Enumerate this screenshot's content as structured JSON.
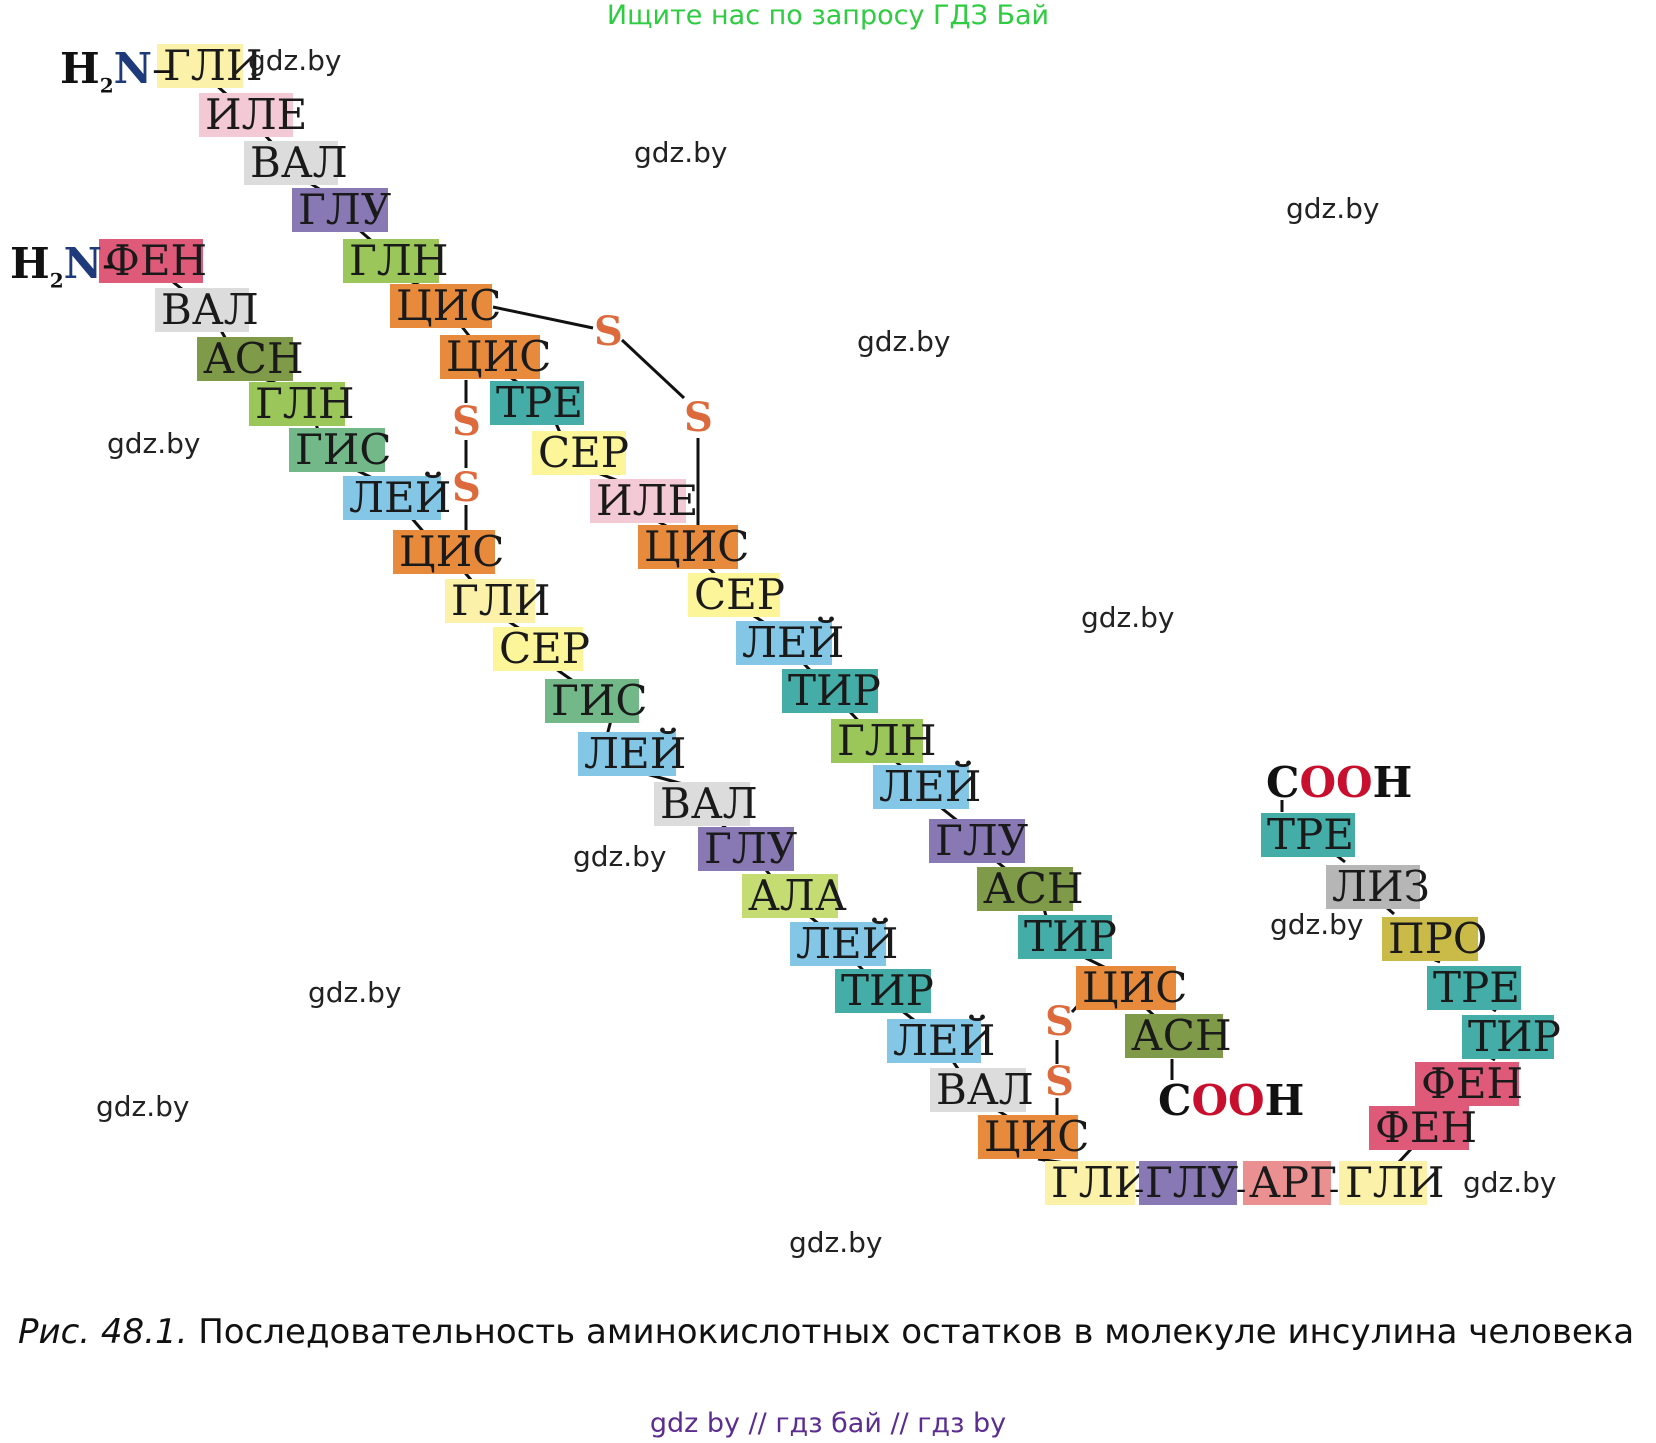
{
  "banner": "Ищите нас по запросу ГДЗ Бай",
  "colors": {
    "ГЛИ": "#fbf1a8",
    "ИЛЕ": "#f4c9d6",
    "ВАЛ": "#dcdcdc",
    "ГЛУ": "#8878b4",
    "ГЛН": "#9bc75a",
    "ЦИС": "#e88a3c",
    "ФЕН": "#de5a78",
    "АСН": "#7f9a48",
    "ГИС": "#72b888",
    "ЛЕЙ": "#84c6e6",
    "ТРЕ": "#45ada8",
    "СЕР": "#fcf59a",
    "ТИР": "#45ada8",
    "АЛА": "#c4dc72",
    "АРГ": "#ea9090",
    "ЛИЗ": "#b6b6b6",
    "ПРО": "#cabb48",
    "sulfur": "#dd6a3c",
    "cooh_red": "#c8102e",
    "n_blue": "#1f3a7a"
  },
  "chain_a": {
    "n_terminus": {
      "h": "H",
      "sub": "2",
      "n": "N",
      "dash": "–"
    },
    "residues": [
      "ГЛИ",
      "ИЛЕ",
      "ВАЛ",
      "ГЛУ",
      "ГЛН",
      "ЦИС",
      "ЦИС",
      "ТРЕ",
      "СЕР",
      "ИЛЕ",
      "ЦИС",
      "СЕР",
      "ЛЕЙ",
      "ТИР",
      "ГЛН",
      "ЛЕЙ",
      "ГЛУ",
      "АСН",
      "ТИР",
      "ЦИС",
      "АСН"
    ],
    "c_terminus": {
      "c": "C",
      "oo": "OO",
      "h": "H"
    }
  },
  "chain_b": {
    "n_terminus": {
      "h": "H",
      "sub": "2",
      "n": "N",
      "dash": "-"
    },
    "residues": [
      "ФЕН",
      "ВАЛ",
      "АСН",
      "ГЛН",
      "ГИС",
      "ЛЕЙ",
      "ЦИС",
      "ГЛИ",
      "СЕР",
      "ГИС",
      "ЛЕЙ",
      "ВАЛ",
      "ГЛУ",
      "АЛА",
      "ЛЕЙ",
      "ТИР",
      "ЛЕЙ",
      "ВАЛ",
      "ЦИС",
      "ГЛИ",
      "ГЛУ",
      "АРГ",
      "ГЛИ",
      "ФЕН",
      "ФЕН",
      "ТИР",
      "ТРЕ",
      "ПРО",
      "ЛИЗ",
      "ТРЕ"
    ],
    "c_terminus": {
      "c": "C",
      "oo": "OO",
      "h": "H"
    }
  },
  "sulfur_label": "S",
  "bridge_dashes": [
    "-",
    "-",
    "-"
  ],
  "watermarks": [
    "gdz.by",
    "gdz.by",
    "gdz.by",
    "gdz.by",
    "gdz.by",
    "gdz.by",
    "gdz.by",
    "gdz.by",
    "gdz.by",
    "gdz.by",
    "gdz.by",
    "gdz.by",
    "gdz.by"
  ],
  "caption": {
    "figure": "Рис. 48.1.",
    "text": " Последовательность аминокислотных остатков в молекуле инсулина человека"
  },
  "footer": "gdz by  //  гдз бай  //  гдз by"
}
